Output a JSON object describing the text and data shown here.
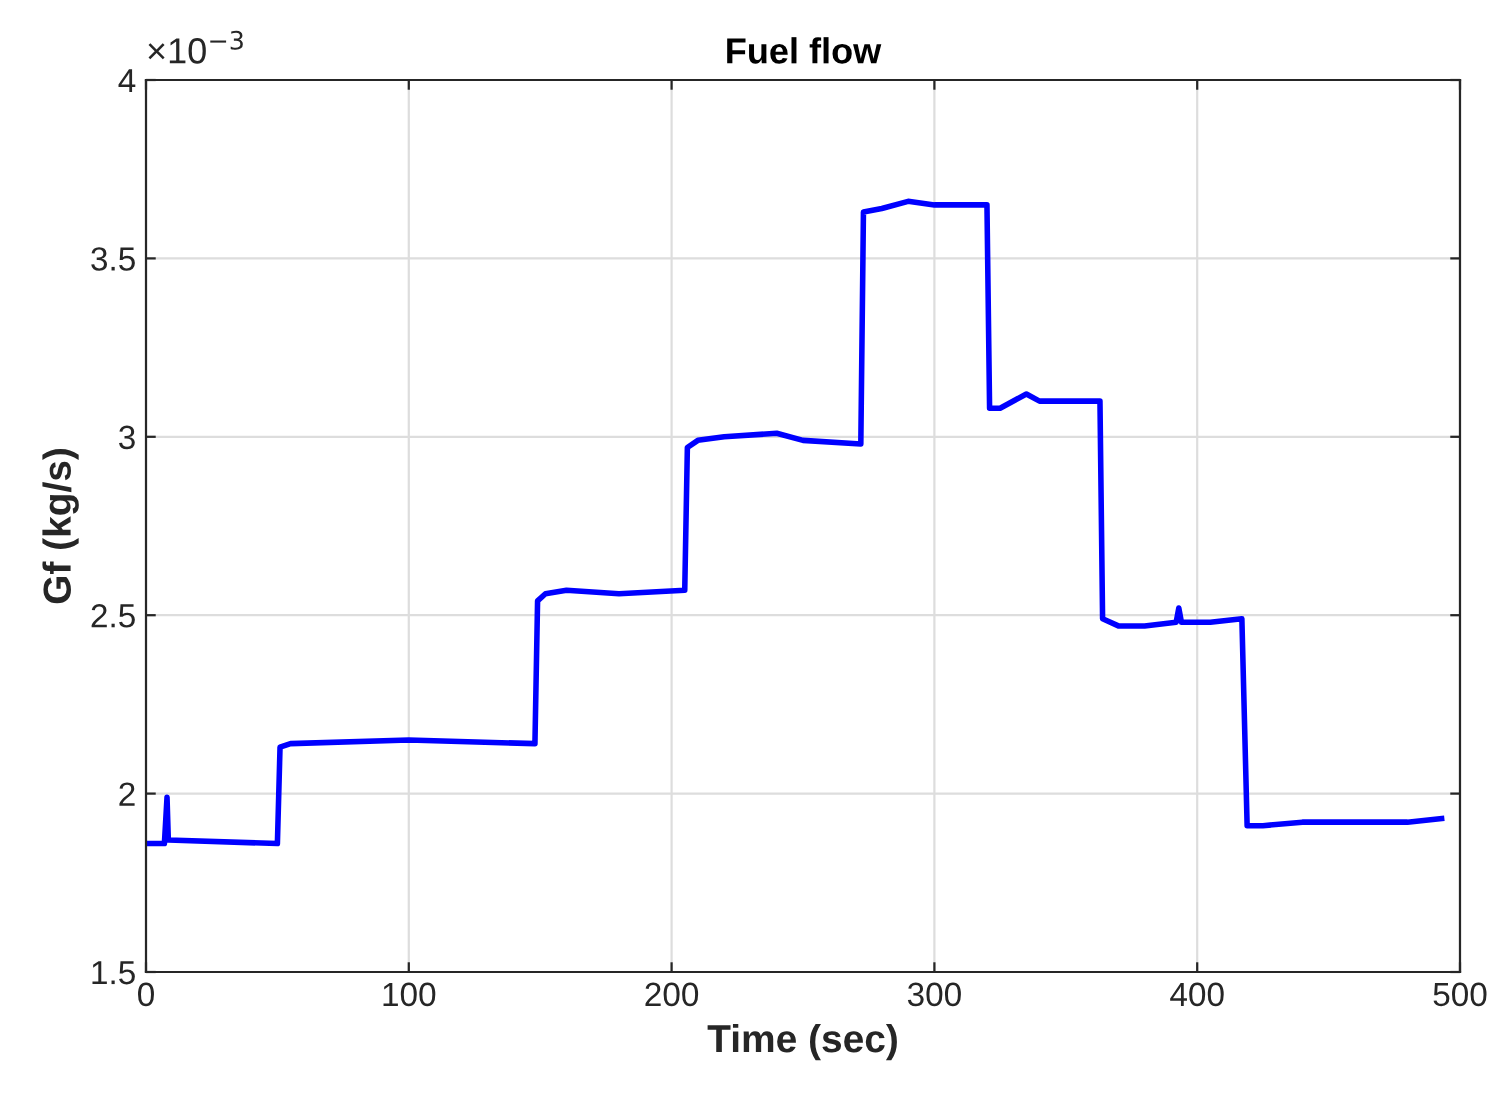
{
  "chart_data": {
    "type": "line",
    "title": "Fuel flow",
    "xlabel": "Time (sec)",
    "ylabel": "Gf (kg/s)",
    "annotations": [
      "×10$^{−3}$"
    ],
    "series": [
      {
        "color": "#0000ff",
        "x": [
          0,
          7,
          8,
          8.5,
          50,
          51,
          55,
          100,
          148,
          149,
          152,
          160,
          180,
          205,
          206,
          210,
          220,
          240,
          250,
          272,
          273,
          280,
          290,
          300,
          310,
          320,
          321,
          325,
          335,
          340,
          350,
          363,
          364,
          370,
          380,
          392,
          393,
          394,
          405,
          417,
          419,
          425,
          440,
          460,
          480,
          493
        ],
        "values": [
          1.86,
          1.86,
          1.99,
          1.87,
          1.86,
          2.13,
          2.14,
          2.15,
          2.14,
          2.54,
          2.56,
          2.57,
          2.56,
          2.57,
          2.97,
          2.99,
          3.0,
          3.01,
          2.99,
          2.98,
          3.63,
          3.64,
          3.66,
          3.65,
          3.65,
          3.65,
          3.08,
          3.08,
          3.12,
          3.1,
          3.1,
          3.1,
          2.49,
          2.47,
          2.47,
          2.48,
          2.52,
          2.48,
          2.48,
          2.49,
          1.91,
          1.91,
          1.92,
          1.92,
          1.92,
          1.93
        ]
      }
    ],
    "xlim": [
      0,
      500
    ],
    "xticks": [
      0,
      100,
      200,
      300,
      400,
      500
    ],
    "ylim": [
      1.5,
      4
    ],
    "yticks": [
      1.5,
      2,
      2.5,
      3,
      3.5,
      4
    ],
    "grid": true,
    "marker": "none",
    "line_style": "solid"
  }
}
